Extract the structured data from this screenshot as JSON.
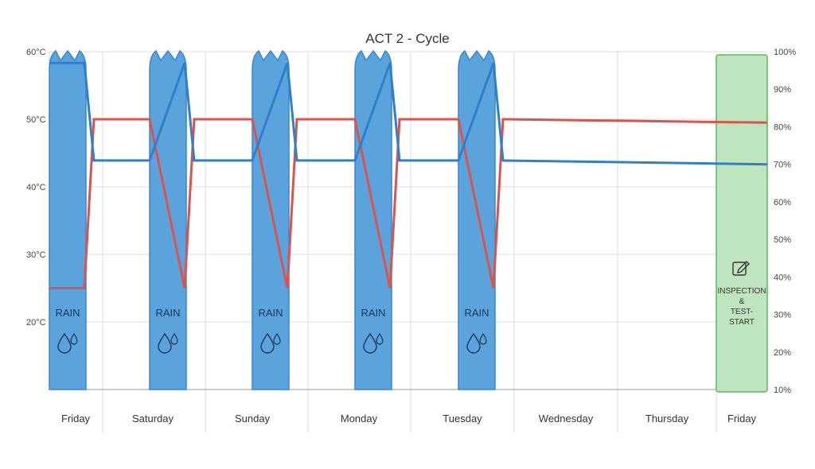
{
  "chart_data": {
    "type": "line",
    "title": "ACT 2 - Cycle",
    "y_left": {
      "ticks": [
        "60°C",
        "50°C",
        "40°C",
        "30°C",
        "20°C"
      ],
      "values": [
        60,
        50,
        40,
        30,
        20
      ],
      "range": [
        10,
        60
      ]
    },
    "y_right": {
      "ticks": [
        "100%",
        "90%",
        "80%",
        "70%",
        "60%",
        "50%",
        "40%",
        "30%",
        "20%",
        "10%"
      ],
      "values": [
        100,
        90,
        80,
        70,
        60,
        50,
        40,
        30,
        20,
        10
      ],
      "range": [
        10,
        100
      ]
    },
    "days": [
      "Friday",
      "Saturday",
      "Sunday",
      "Monday",
      "Tuesday",
      "Wednesday",
      "Thursday",
      "Friday"
    ],
    "rain_periods": [
      {
        "label": "RAIN",
        "day_index": 0
      },
      {
        "label": "RAIN",
        "day_index": 1
      },
      {
        "label": "RAIN",
        "day_index": 2
      },
      {
        "label": "RAIN",
        "day_index": 3
      },
      {
        "label": "RAIN",
        "day_index": 4
      }
    ],
    "inspection": {
      "label_lines": [
        "INSPECTION",
        "&",
        "TEST-",
        "START"
      ],
      "day_index": 7
    },
    "series": [
      {
        "axis": "left",
        "color": "#d9534f",
        "points": [
          [
            0,
            25
          ],
          [
            0.33,
            25
          ],
          [
            0.42,
            50
          ],
          [
            1,
            50
          ],
          [
            1.33,
            25
          ],
          [
            1.42,
            50
          ],
          [
            2,
            50
          ],
          [
            2.33,
            25
          ],
          [
            2.42,
            50
          ],
          [
            3,
            50
          ],
          [
            3.33,
            25
          ],
          [
            3.42,
            50
          ],
          [
            4,
            50
          ],
          [
            4.33,
            25
          ],
          [
            4.42,
            50
          ],
          [
            8,
            49.5
          ]
        ]
      },
      {
        "axis": "right",
        "color": "#2f7fcb",
        "points": [
          [
            0,
            97
          ],
          [
            0.33,
            97
          ],
          [
            0.42,
            71
          ],
          [
            1,
            71
          ],
          [
            1.33,
            97
          ],
          [
            1.42,
            71
          ],
          [
            2,
            71
          ],
          [
            2.33,
            97
          ],
          [
            2.42,
            71
          ],
          [
            3,
            71
          ],
          [
            3.33,
            97
          ],
          [
            3.42,
            71
          ],
          [
            4,
            71
          ],
          [
            4.33,
            97
          ],
          [
            4.42,
            71
          ],
          [
            8,
            70
          ]
        ]
      }
    ],
    "colors": {
      "rain_fill": "#5ba3dd",
      "rain_edge": "#3a86c8",
      "inspection_fill": "#bfe5be",
      "inspection_edge": "#5cb85c",
      "grid": "#dcdcdc"
    }
  }
}
